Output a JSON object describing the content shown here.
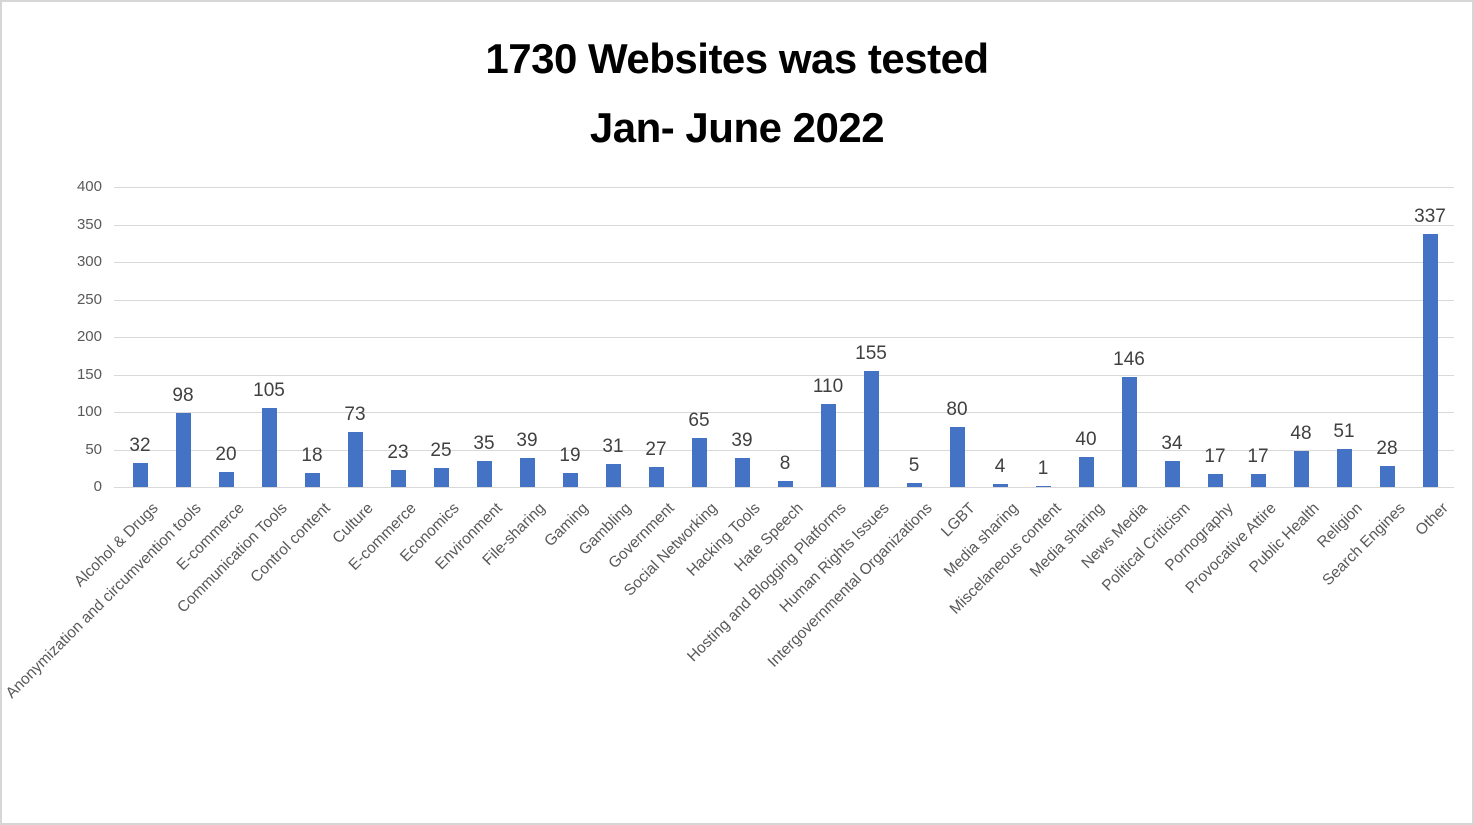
{
  "title": {
    "line1": "1730 Websites was tested",
    "line2": "Jan- June 2022"
  },
  "chart_data": {
    "type": "bar",
    "title": "1730 Websites was tested Jan- June 2022",
    "categories": [
      "Alcohol & Drugs",
      "Anonymization and circumvention tools",
      "E-commerce",
      "Communication Tools",
      "Control content",
      "Culture",
      "E-commerce",
      "Economics",
      "Environment",
      "File-sharing",
      "Gaming",
      "Gambling",
      "Government",
      "Social Networking",
      "Hacking Tools",
      "Hate Speech",
      "Hosting and Blogging Platforms",
      "Human Rights Issues",
      "Intergovernmental Organizations",
      "LGBT",
      "Media sharing",
      "Miscelaneous content",
      "Media sharing",
      "News Media",
      "Political Criticism",
      "Pornography",
      "Provocative Attire",
      "Public Health",
      "Religion",
      "Search Engines",
      "Other"
    ],
    "values": [
      32,
      98,
      20,
      105,
      18,
      73,
      23,
      25,
      35,
      39,
      19,
      31,
      27,
      65,
      39,
      8,
      110,
      155,
      5,
      80,
      4,
      1,
      40,
      146,
      34,
      17,
      17,
      48,
      51,
      28,
      337
    ],
    "xlabel": "",
    "ylabel": "",
    "ylim": [
      0,
      400
    ],
    "yticks": [
      0,
      50,
      100,
      150,
      200,
      250,
      300,
      350,
      400
    ],
    "grid": true,
    "legend": "none",
    "data_labels": "outside-end",
    "bar_color": "#4472C4"
  },
  "colors": {
    "bar": "#4472C4",
    "grid": "#D9D9D9",
    "axis_text": "#595959",
    "data_label_text": "#404040",
    "title_text": "#000000",
    "border": "#D6D6D6"
  }
}
